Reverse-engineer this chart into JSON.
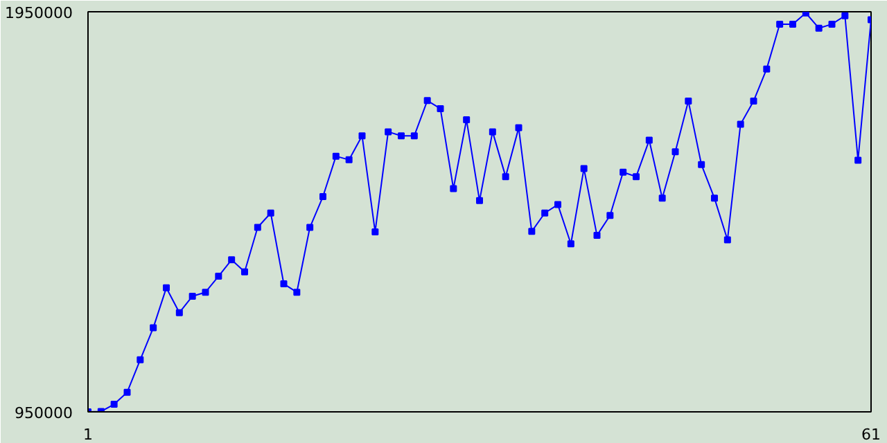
{
  "chart_data": {
    "type": "line",
    "x": [
      1,
      2,
      3,
      4,
      5,
      6,
      7,
      8,
      9,
      10,
      11,
      12,
      13,
      14,
      15,
      16,
      17,
      18,
      19,
      20,
      21,
      22,
      23,
      24,
      25,
      26,
      27,
      28,
      29,
      30,
      31,
      32,
      33,
      34,
      35,
      36,
      37,
      38,
      39,
      40,
      41,
      42,
      43,
      44,
      45,
      46,
      47,
      48,
      49,
      50,
      51,
      52,
      53,
      54,
      55,
      56,
      57,
      58,
      59,
      60,
      61
    ],
    "series": [
      {
        "color": "#0000ff",
        "values": [
          950000,
          951000,
          969000,
          999000,
          1080000,
          1160000,
          1260000,
          1198000,
          1239000,
          1249000,
          1289000,
          1330000,
          1300000,
          1411000,
          1447000,
          1270000,
          1249000,
          1411000,
          1488000,
          1589000,
          1580000,
          1640000,
          1400000,
          1650000,
          1640000,
          1640000,
          1728000,
          1708000,
          1508000,
          1680000,
          1478000,
          1650000,
          1538000,
          1660000,
          1401000,
          1447000,
          1468000,
          1370000,
          1558000,
          1391000,
          1441000,
          1549000,
          1538000,
          1629000,
          1484000,
          1600000,
          1727000,
          1568000,
          1484000,
          1380000,
          1669000,
          1727000,
          1807000,
          1919000,
          1919000,
          1947000,
          1909000,
          1919000,
          1940000,
          1579000,
          1930000
        ]
      }
    ],
    "xlim": [
      1,
      61
    ],
    "xticks": [
      1,
      61
    ],
    "ylim": [
      950000,
      1950000
    ],
    "yticks": [
      950000,
      1950000
    ],
    "marker": "square",
    "line_style": "solid"
  }
}
